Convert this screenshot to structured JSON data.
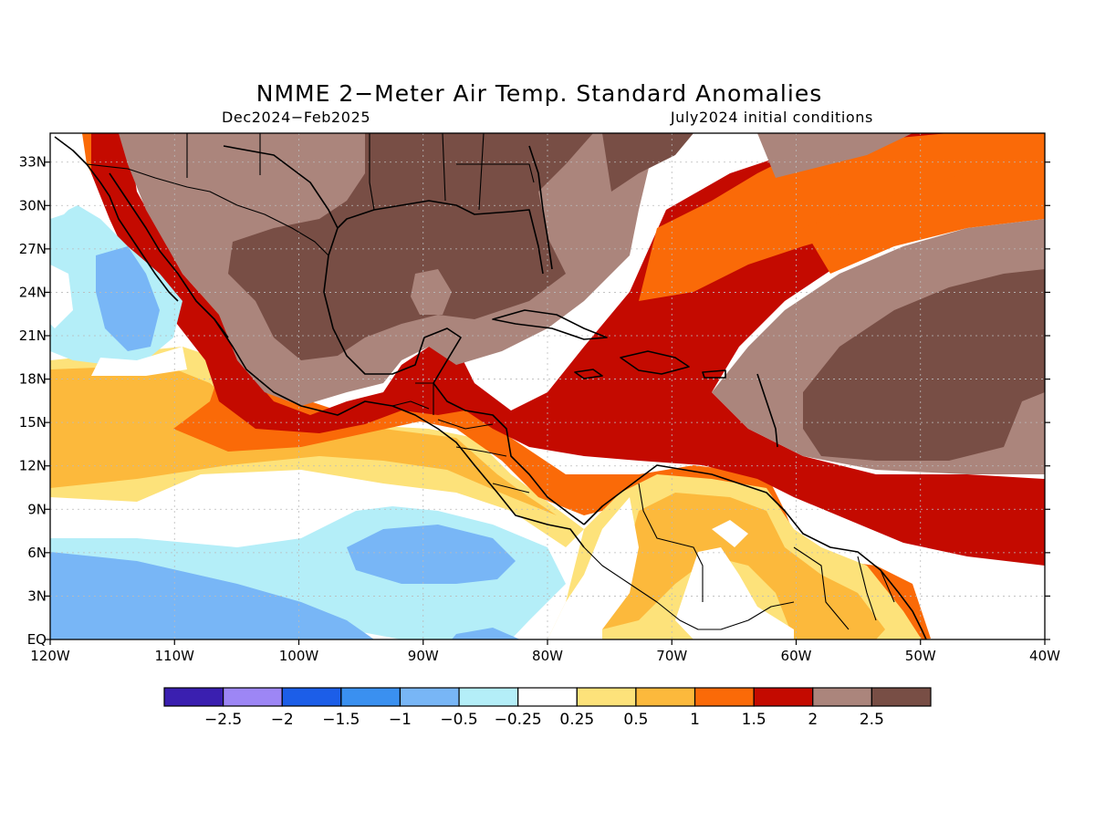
{
  "title": "NMME 2−Meter Air Temp. Standard Anomalies",
  "period": "Dec2024−Feb2025",
  "initial_conditions": "July2024 initial conditions",
  "map": {
    "lon_range": [
      -120,
      -40
    ],
    "lat_range": [
      0,
      35
    ],
    "lon_ticks": [
      {
        "value": -120,
        "label": "120W"
      },
      {
        "value": -110,
        "label": "110W"
      },
      {
        "value": -100,
        "label": "100W"
      },
      {
        "value": -90,
        "label": "90W"
      },
      {
        "value": -80,
        "label": "80W"
      },
      {
        "value": -70,
        "label": "70W"
      },
      {
        "value": -60,
        "label": "60W"
      },
      {
        "value": -50,
        "label": "50W"
      },
      {
        "value": -40,
        "label": "40W"
      }
    ],
    "lat_ticks": [
      {
        "value": 0,
        "label": "EQ"
      },
      {
        "value": 3,
        "label": "3N"
      },
      {
        "value": 6,
        "label": "6N"
      },
      {
        "value": 9,
        "label": "9N"
      },
      {
        "value": 12,
        "label": "12N"
      },
      {
        "value": 15,
        "label": "15N"
      },
      {
        "value": 18,
        "label": "18N"
      },
      {
        "value": 21,
        "label": "21N"
      },
      {
        "value": 24,
        "label": "24N"
      },
      {
        "value": 27,
        "label": "27N"
      },
      {
        "value": 30,
        "label": "30N"
      },
      {
        "value": 33,
        "label": "33N"
      }
    ]
  },
  "colorbar": {
    "colors": [
      "#3a1fb0",
      "#9d86f5",
      "#1c5ee8",
      "#3a90f0",
      "#78b6f6",
      "#b4eef8",
      "#ffffff",
      "#fde27a",
      "#fcb93c",
      "#fa6a08",
      "#c40a00",
      "#ab857c",
      "#784e45"
    ],
    "labels": [
      "−2.5",
      "−2",
      "−1.5",
      "−1",
      "−0.5",
      "−0.25",
      "0.25",
      "0.5",
      "1",
      "1.5",
      "2",
      "2.5"
    ]
  }
}
